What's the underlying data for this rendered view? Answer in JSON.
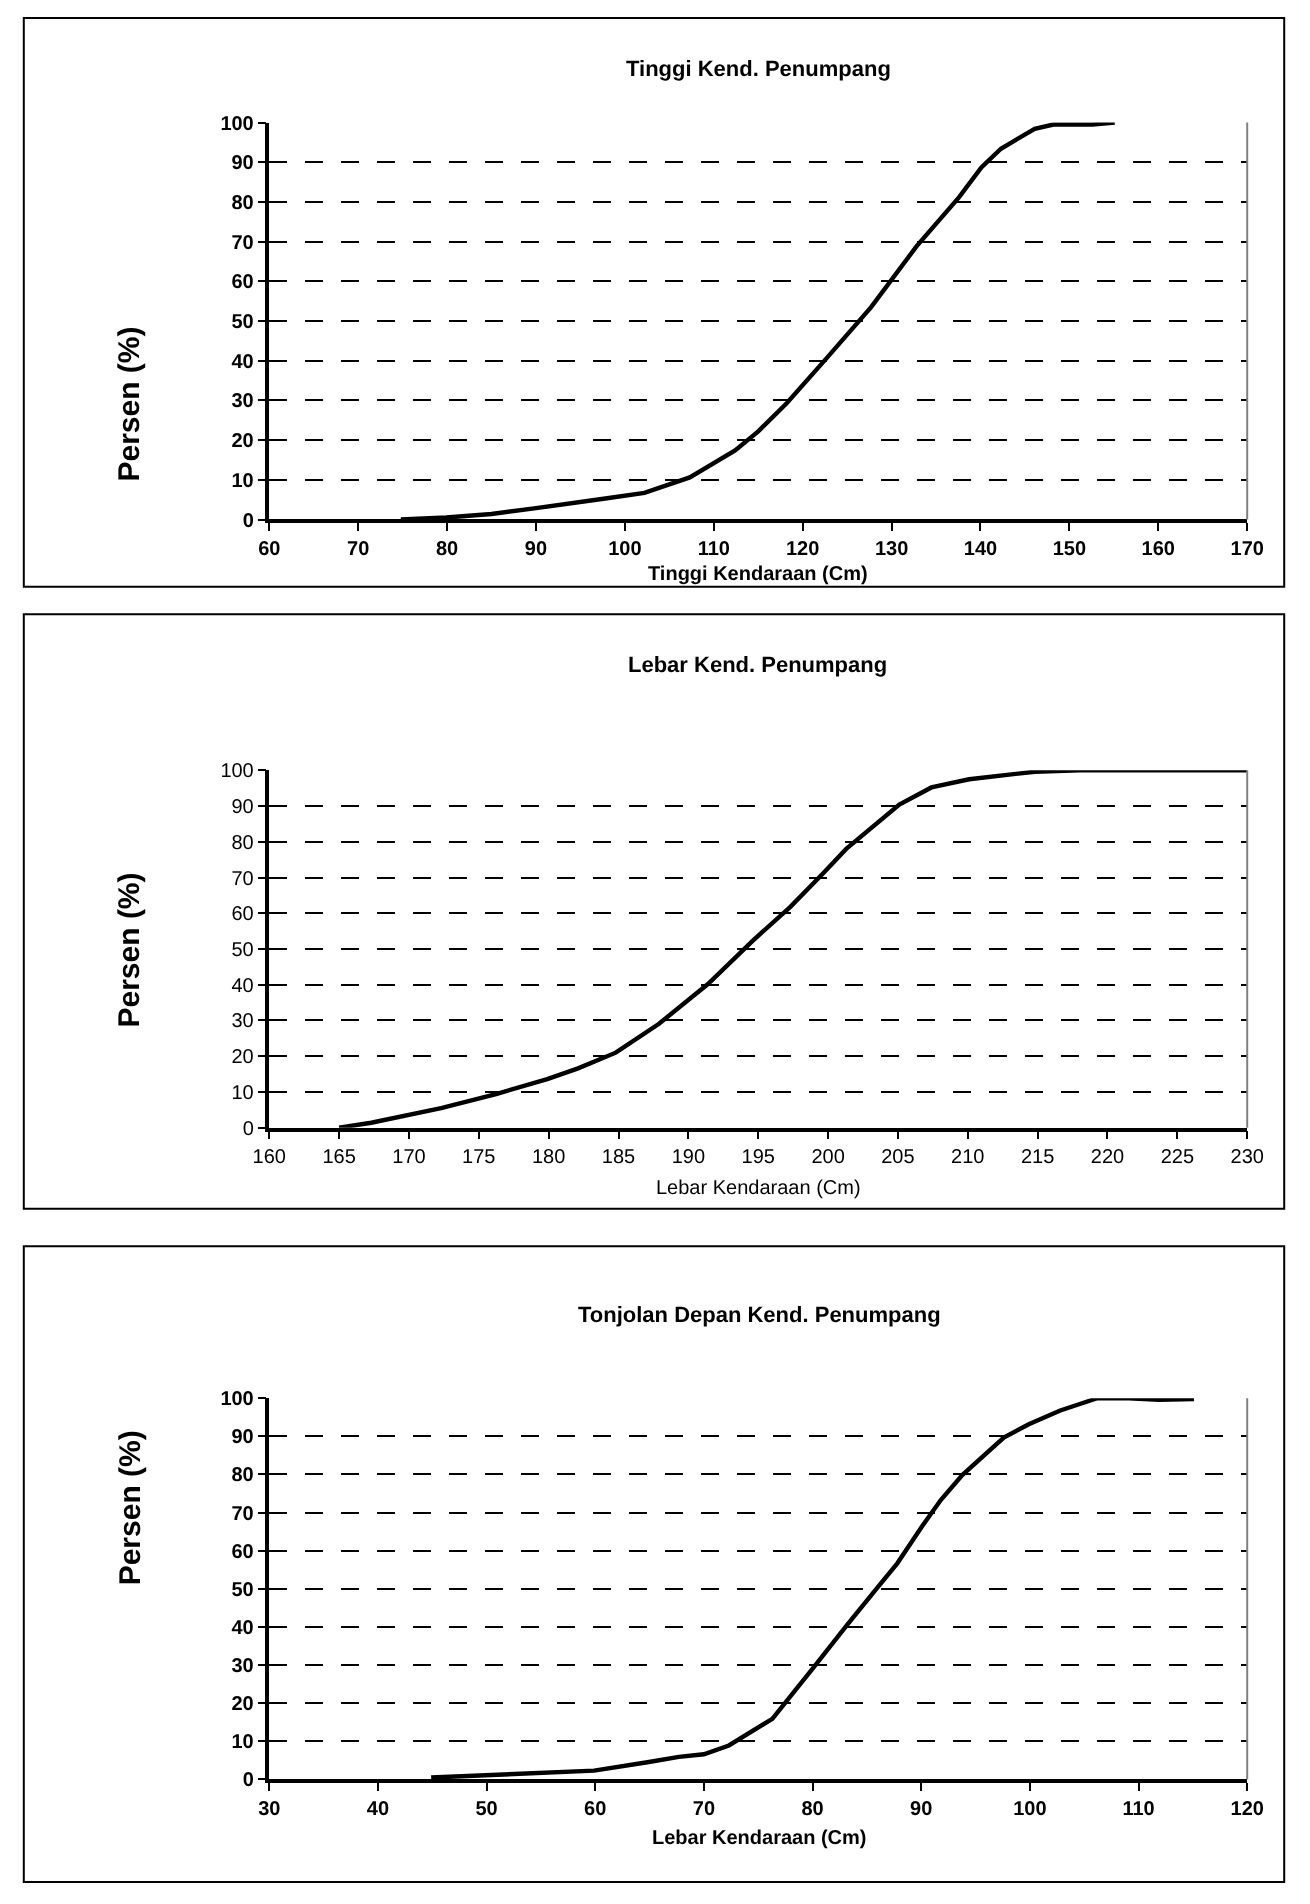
{
  "chart_data": [
    {
      "type": "line",
      "title": "Tinggi Kend. Penumpang",
      "xlabel": "Tinggi Kendaraan (Cm)",
      "ylabel": "Persen (%)",
      "color": "#000000",
      "grid": "y",
      "x": [
        74.8,
        79.9,
        85,
        89.8,
        97.8,
        102.2,
        107.3,
        112.4,
        115,
        118.2,
        122.6,
        127.7,
        132.8,
        137.6,
        140.1,
        142.3,
        143.8,
        146.1,
        148.2,
        152.6,
        155.1
      ],
      "values": [
        0,
        0.5,
        1.4,
        2.8,
        5.3,
        6.7,
        10.6,
        17.4,
        22.2,
        29.3,
        40.4,
        53.5,
        68.8,
        81.2,
        88.7,
        93.4,
        95.4,
        98.4,
        99.5,
        99.5,
        100
      ],
      "xlim": [
        60,
        170
      ],
      "xticks": [
        60,
        70,
        80,
        90,
        100,
        110,
        120,
        130,
        140,
        150,
        160,
        170
      ],
      "ylim": [
        0,
        100
      ],
      "yticks": [
        0,
        10,
        20,
        30,
        40,
        50,
        60,
        70,
        80,
        90,
        100
      ]
    },
    {
      "type": "line",
      "title": "Lebar Kend. Penumpang",
      "xlabel": "Lebar Kendaraan (Cm)",
      "ylabel": "Persen (%)",
      "color": "#000000",
      "grid": "y",
      "x": [
        165,
        167.3,
        172.3,
        176.3,
        179.9,
        182.1,
        184.8,
        187.9,
        191.4,
        194.6,
        197.3,
        199.6,
        201.3,
        205.1,
        207.4,
        210.1,
        214.8,
        218,
        225,
        230
      ],
      "values": [
        0,
        1.4,
        5.5,
        9.5,
        13.6,
        16.6,
        21,
        29.1,
        40.2,
        52.3,
        61.8,
        71,
        78,
        90.4,
        95.2,
        97.5,
        99.6,
        100,
        100,
        100
      ],
      "xlim": [
        160,
        230
      ],
      "xticks": [
        160,
        165,
        170,
        175,
        180,
        185,
        190,
        195,
        200,
        205,
        210,
        215,
        220,
        225,
        230
      ],
      "ylim": [
        0,
        100
      ],
      "yticks": [
        0,
        10,
        20,
        30,
        40,
        50,
        60,
        70,
        80,
        90,
        100
      ]
    },
    {
      "type": "line",
      "title": "Tonjolan Depan Kend. Penumpang",
      "xlabel": "Lebar Kendaraan (Cm)",
      "ylabel": "Persen (%)",
      "color": "#000000",
      "grid": "y",
      "x": [
        44.9,
        49.9,
        59.9,
        64.8,
        67.7,
        70,
        72.3,
        76.3,
        80.1,
        83.2,
        86.1,
        87.8,
        90.1,
        91.8,
        93.8,
        97.6,
        99.9,
        102.8,
        106.2,
        109.1,
        111.9,
        115.1
      ],
      "values": [
        0.5,
        1.1,
        2.3,
        4.5,
        5.9,
        6.6,
        8.9,
        15.9,
        29.4,
        40.6,
        50.8,
        56.7,
        66.5,
        73.3,
        79.9,
        89.7,
        93.2,
        96.8,
        100,
        100,
        99.6,
        99.8
      ],
      "xlim": [
        30,
        120
      ],
      "xticks": [
        30,
        40,
        50,
        60,
        70,
        80,
        90,
        100,
        110,
        120
      ],
      "ylim": [
        0,
        100
      ],
      "yticks": [
        0,
        10,
        20,
        30,
        40,
        50,
        60,
        70,
        80,
        90,
        100
      ]
    }
  ]
}
